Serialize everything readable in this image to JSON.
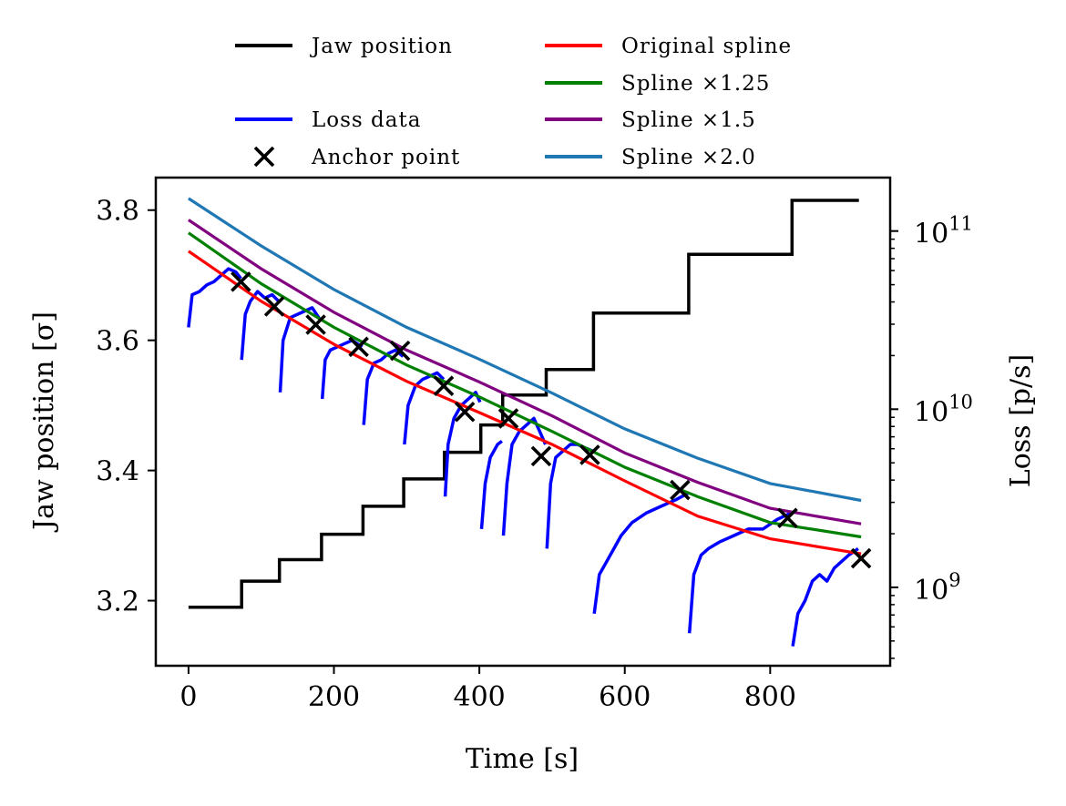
{
  "chart_data": {
    "type": "line",
    "xlabel": "Time [s]",
    "ylabel_left": "Jaw position [σ]",
    "ylabel_right": "Loss [p/s]",
    "xlim": [
      -45,
      965
    ],
    "ylim_left": [
      3.1,
      3.85
    ],
    "ylim_right_log10": [
      8.56,
      11.3
    ],
    "right_scale": "log",
    "grid": false,
    "legend_placement": "above plot, two columns",
    "x_ticks": [
      0,
      200,
      400,
      600,
      800
    ],
    "x_tick_labels": [
      "0",
      "200",
      "400",
      "600",
      "800"
    ],
    "y_left_ticks": [
      3.2,
      3.4,
      3.6,
      3.8
    ],
    "y_left_tick_labels": [
      "3.2",
      "3.4",
      "3.6",
      "3.8"
    ],
    "y_right_ticks_log10": [
      9,
      10,
      11
    ],
    "y_right_tick_labels": [
      {
        "base": "10",
        "exp": "9"
      },
      {
        "base": "10",
        "exp": "10"
      },
      {
        "base": "10",
        "exp": "11"
      }
    ],
    "legend": [
      {
        "key": "jaw",
        "label": "Jaw position",
        "color": "#000000",
        "marker": "line"
      },
      {
        "key": "orig",
        "label": "Original spline",
        "color": "#ff0000",
        "marker": "line"
      },
      {
        "key": "s125",
        "label": "Spline ×1.25",
        "color": "#008000",
        "marker": "line"
      },
      {
        "key": "loss",
        "label": "Loss data",
        "color": "#0000ff",
        "marker": "line"
      },
      {
        "key": "s15",
        "label": "Spline ×1.5",
        "color": "#800080",
        "marker": "line"
      },
      {
        "key": "anchor",
        "label": "Anchor point",
        "color": "#000000",
        "marker": "x"
      },
      {
        "key": "s20",
        "label": "Spline ×2.0",
        "color": "#1f77b4",
        "marker": "line"
      }
    ],
    "jaw_position_steps": {
      "color": "#000000",
      "axis": "left",
      "times": [
        0,
        73,
        125,
        183,
        240,
        296,
        352,
        402,
        432,
        492,
        557,
        688,
        830,
        922
      ],
      "positions": [
        3.19,
        3.23,
        3.263,
        3.302,
        3.345,
        3.387,
        3.428,
        3.47,
        3.516,
        3.555,
        3.642,
        3.732,
        3.815
      ]
    },
    "splines": [
      {
        "key": "orig",
        "name": "Original spline",
        "color": "#ff0000",
        "scale": 1.0,
        "x": [
          0,
          100,
          200,
          300,
          400,
          500,
          600,
          700,
          800,
          925
        ],
        "y": [
          3.737,
          3.66,
          3.594,
          3.537,
          3.489,
          3.44,
          3.384,
          3.33,
          3.295,
          3.272
        ]
      },
      {
        "key": "s125",
        "name": "Spline ×1.25",
        "color": "#008000",
        "scale": 1.25,
        "x": [
          0,
          100,
          200,
          300,
          400,
          500,
          600,
          700,
          800,
          925
        ],
        "y": [
          3.765,
          3.687,
          3.62,
          3.562,
          3.513,
          3.46,
          3.405,
          3.36,
          3.32,
          3.298
        ]
      },
      {
        "key": "s15",
        "name": "Spline ×1.5",
        "color": "#800080",
        "scale": 1.5,
        "x": [
          0,
          100,
          200,
          300,
          400,
          500,
          600,
          700,
          800,
          925
        ],
        "y": [
          3.785,
          3.71,
          3.643,
          3.585,
          3.536,
          3.484,
          3.427,
          3.382,
          3.342,
          3.318
        ]
      },
      {
        "key": "s20",
        "name": "Spline ×2.0",
        "color": "#1f77b4",
        "scale": 2.0,
        "x": [
          0,
          100,
          200,
          300,
          400,
          500,
          600,
          700,
          800,
          925
        ],
        "y": [
          3.818,
          3.745,
          3.678,
          3.62,
          3.571,
          3.519,
          3.464,
          3.419,
          3.38,
          3.354
        ]
      }
    ],
    "loss_segments": {
      "color": "#0000ff",
      "axis": "left",
      "segments": [
        {
          "x": [
            0,
            5,
            15,
            25,
            35,
            45,
            55,
            65,
            72
          ],
          "y": [
            3.62,
            3.67,
            3.675,
            3.685,
            3.69,
            3.7,
            3.71,
            3.705,
            3.695
          ]
        },
        {
          "x": [
            73,
            78,
            85,
            95,
            105,
            115,
            124
          ],
          "y": [
            3.57,
            3.64,
            3.66,
            3.675,
            3.665,
            3.67,
            3.66
          ]
        },
        {
          "x": [
            126,
            130,
            140,
            150,
            160,
            170,
            182
          ],
          "y": [
            3.52,
            3.6,
            3.635,
            3.64,
            3.645,
            3.65,
            3.63
          ]
        },
        {
          "x": [
            184,
            188,
            195,
            205,
            215,
            225,
            239
          ],
          "y": [
            3.51,
            3.57,
            3.585,
            3.59,
            3.595,
            3.6,
            3.59
          ]
        },
        {
          "x": [
            241,
            246,
            255,
            265,
            275,
            285,
            295
          ],
          "y": [
            3.47,
            3.54,
            3.565,
            3.57,
            3.58,
            3.585,
            3.575
          ]
        },
        {
          "x": [
            297,
            302,
            312,
            322,
            332,
            342,
            351
          ],
          "y": [
            3.44,
            3.5,
            3.53,
            3.54,
            3.545,
            3.55,
            3.54
          ]
        },
        {
          "x": [
            353,
            357,
            365,
            375,
            385,
            395,
            401
          ],
          "y": [
            3.36,
            3.44,
            3.48,
            3.5,
            3.51,
            3.52,
            3.505
          ]
        },
        {
          "x": [
            403,
            408,
            415,
            425,
            431
          ],
          "y": [
            3.31,
            3.38,
            3.42,
            3.44,
            3.445
          ]
        },
        {
          "x": [
            433,
            438,
            445,
            455,
            465,
            475,
            491
          ],
          "y": [
            3.3,
            3.38,
            3.44,
            3.46,
            3.47,
            3.48,
            3.44
          ]
        },
        {
          "x": [
            493,
            498,
            505,
            515,
            525,
            535,
            545,
            556
          ],
          "y": [
            3.28,
            3.38,
            3.42,
            3.43,
            3.44,
            3.44,
            3.435,
            3.43
          ]
        },
        {
          "x": [
            558,
            565,
            575,
            585,
            595,
            610,
            630,
            650,
            670,
            687
          ],
          "y": [
            3.18,
            3.24,
            3.26,
            3.28,
            3.3,
            3.32,
            3.335,
            3.345,
            3.355,
            3.365
          ]
        },
        {
          "x": [
            689,
            695,
            705,
            715,
            730,
            750,
            770,
            790,
            810,
            829
          ],
          "y": [
            3.15,
            3.24,
            3.27,
            3.28,
            3.29,
            3.3,
            3.31,
            3.31,
            3.325,
            3.335
          ]
        },
        {
          "x": [
            831,
            838,
            848,
            858,
            868,
            878,
            888,
            898,
            908,
            921
          ],
          "y": [
            3.13,
            3.18,
            3.2,
            3.23,
            3.24,
            3.23,
            3.25,
            3.26,
            3.27,
            3.28
          ]
        }
      ]
    },
    "anchor_points": {
      "color": "#000000",
      "axis": "left",
      "marker": "x",
      "x": [
        72,
        118,
        175,
        234,
        291,
        351,
        380,
        440,
        485,
        552,
        676,
        824,
        925
      ],
      "y": [
        3.69,
        3.652,
        3.624,
        3.59,
        3.584,
        3.53,
        3.49,
        3.48,
        3.422,
        3.424,
        3.37,
        3.327,
        3.265
      ]
    }
  }
}
